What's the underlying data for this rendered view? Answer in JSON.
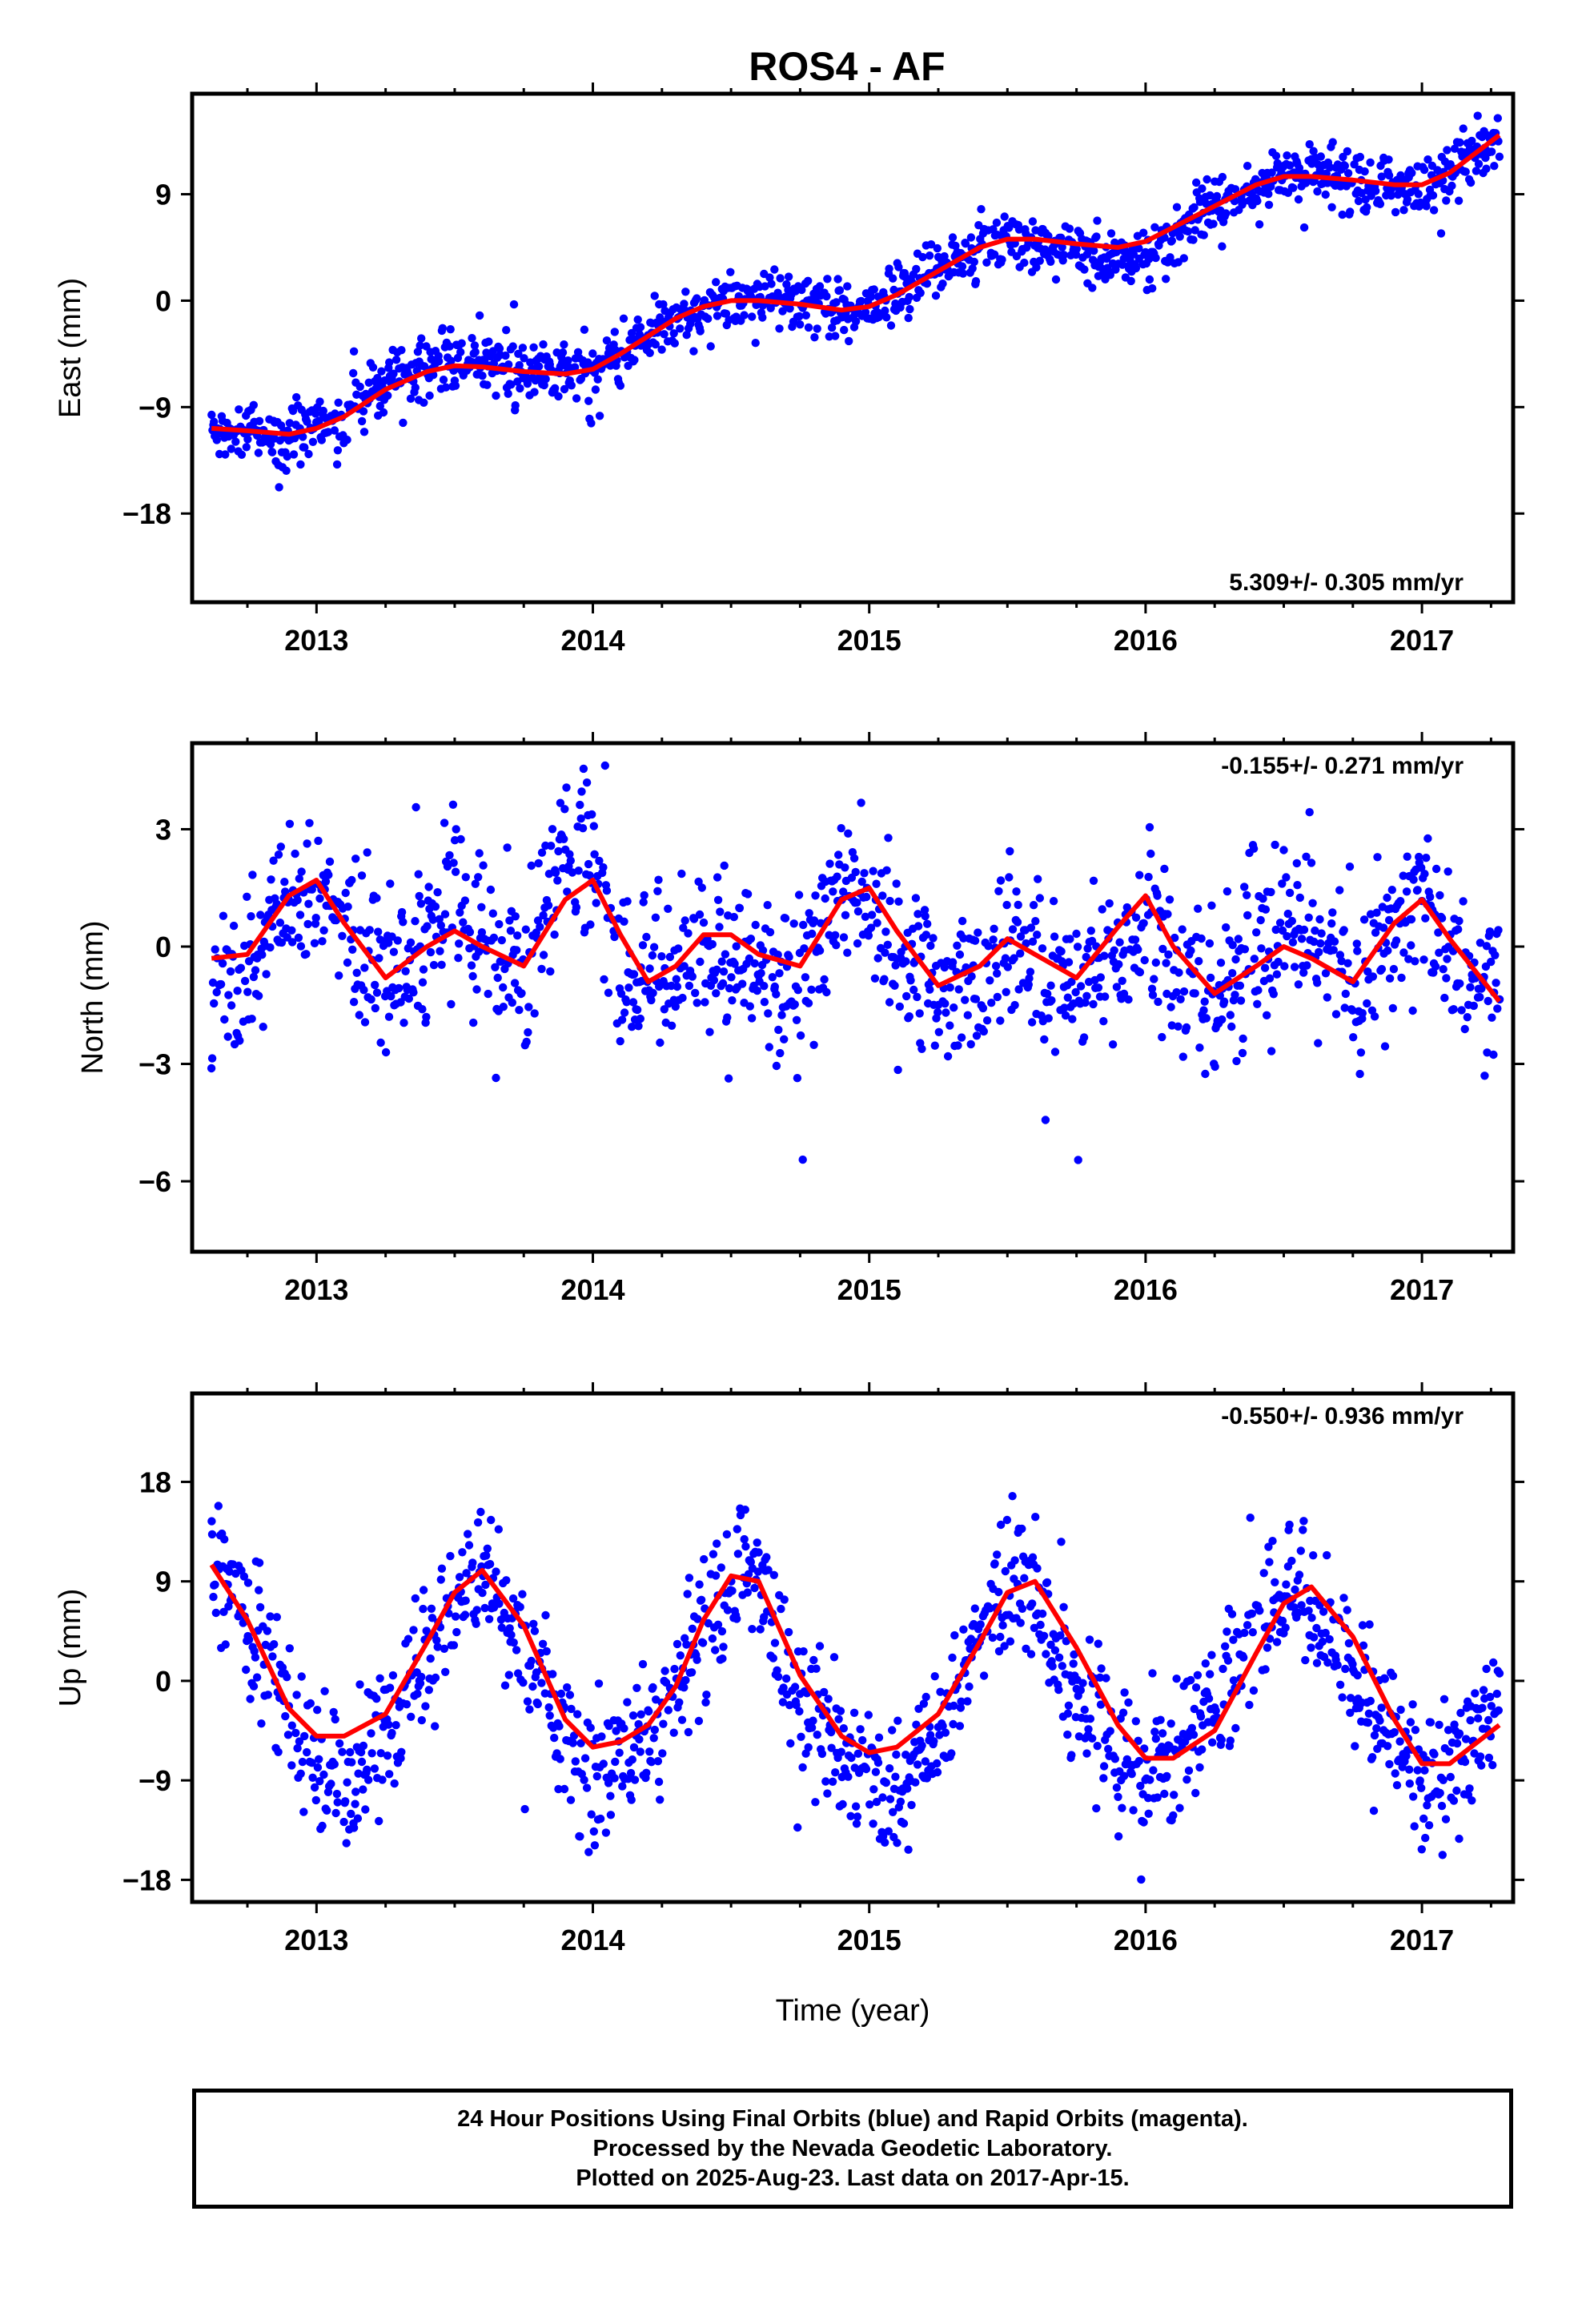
{
  "title": "ROS4 - AF",
  "colors": {
    "points": "#0000ff",
    "fit": "#ff0000",
    "axis": "#000000"
  },
  "chart_data": [
    {
      "type": "scatter",
      "component": "east",
      "ylabel": "East (mm)",
      "xlabel": "",
      "ylim": [
        -25.5,
        17.5
      ],
      "xlim": [
        2012.55,
        2017.33
      ],
      "x_ticks": [
        2013,
        2014,
        2015,
        2016,
        2017
      ],
      "y_ticks": [
        -18,
        -9,
        0,
        9
      ],
      "rate_label": "5.309+/- 0.305 mm/yr",
      "rate_position": "bottom-right",
      "grid": false,
      "series": [
        {
          "name": "Final Orbits",
          "color": "#0000ff",
          "x": [
            2012.62,
            2012.75,
            2012.9,
            2013.0,
            2013.1,
            2013.25,
            2013.4,
            2013.5,
            2013.6,
            2013.75,
            2013.9,
            2014.0,
            2014.1,
            2014.2,
            2014.3,
            2014.4,
            2014.5,
            2014.6,
            2014.75,
            2014.9,
            2015.0,
            2015.1,
            2015.25,
            2015.4,
            2015.5,
            2015.6,
            2015.75,
            2015.9,
            2016.0,
            2016.1,
            2016.25,
            2016.4,
            2016.5,
            2016.6,
            2016.75,
            2016.9,
            2017.0,
            2017.1,
            2017.28
          ],
          "y": [
            -10.8,
            -11.0,
            -11.5,
            -10.5,
            -9.5,
            -6.8,
            -5.5,
            -5.0,
            -5.2,
            -5.8,
            -6.0,
            -5.5,
            -4.5,
            -3.0,
            -1.5,
            -0.5,
            0.0,
            -0.2,
            -0.2,
            -0.8,
            -0.5,
            0.5,
            2.5,
            4.5,
            5.0,
            4.8,
            4.0,
            3.5,
            3.8,
            5.5,
            8.0,
            10.0,
            10.5,
            10.3,
            9.8,
            9.5,
            9.8,
            10.8,
            13.5
          ]
        },
        {
          "name": "Fit",
          "color": "#ff0000",
          "x": [
            2012.62,
            2012.75,
            2012.9,
            2013.0,
            2013.1,
            2013.25,
            2013.4,
            2013.5,
            2013.6,
            2013.75,
            2013.9,
            2014.0,
            2014.1,
            2014.2,
            2014.3,
            2014.4,
            2014.5,
            2014.6,
            2014.75,
            2014.9,
            2015.0,
            2015.1,
            2015.25,
            2015.4,
            2015.5,
            2015.6,
            2015.75,
            2015.9,
            2016.0,
            2016.1,
            2016.25,
            2016.4,
            2016.5,
            2016.6,
            2016.75,
            2016.9,
            2017.0,
            2017.1,
            2017.28
          ],
          "y": [
            -10.8,
            -11.0,
            -11.3,
            -10.8,
            -9.8,
            -7.5,
            -6.0,
            -5.5,
            -5.6,
            -6.0,
            -6.2,
            -5.8,
            -4.5,
            -3.0,
            -1.5,
            -0.5,
            0.0,
            0.0,
            -0.3,
            -0.8,
            -0.5,
            0.5,
            2.5,
            4.5,
            5.2,
            5.2,
            4.8,
            4.5,
            5.0,
            6.2,
            8.0,
            9.8,
            10.5,
            10.5,
            10.2,
            9.8,
            9.8,
            10.8,
            14.0
          ]
        }
      ]
    },
    {
      "type": "scatter",
      "component": "north",
      "ylabel": "North (mm)",
      "xlabel": "",
      "ylim": [
        -7.8,
        5.2
      ],
      "xlim": [
        2012.55,
        2017.33
      ],
      "x_ticks": [
        2013,
        2014,
        2015,
        2016,
        2017
      ],
      "y_ticks": [
        -6,
        -3,
        0,
        3
      ],
      "rate_label": "-0.155+/- 0.271 mm/yr",
      "rate_position": "top-right",
      "grid": false,
      "series": [
        {
          "name": "Final Orbits",
          "color": "#0000ff",
          "x": [
            2012.62,
            2012.75,
            2012.9,
            2013.0,
            2013.1,
            2013.25,
            2013.4,
            2013.5,
            2013.6,
            2013.75,
            2013.9,
            2014.0,
            2014.1,
            2014.2,
            2014.3,
            2014.4,
            2014.5,
            2014.6,
            2014.75,
            2014.9,
            2015.0,
            2015.1,
            2015.25,
            2015.4,
            2015.5,
            2015.6,
            2015.75,
            2015.9,
            2016.0,
            2016.1,
            2016.25,
            2016.4,
            2016.5,
            2016.6,
            2016.75,
            2016.9,
            2017.0,
            2017.1,
            2017.28
          ],
          "y": [
            -1.5,
            -0.5,
            1.5,
            1.5,
            0.5,
            -0.8,
            0.2,
            1.2,
            0.5,
            -0.8,
            2.5,
            2.5,
            -0.8,
            -0.8,
            -0.5,
            -0.3,
            -0.3,
            -0.5,
            -0.8,
            1.5,
            1.2,
            0.0,
            -1.0,
            -1.0,
            0.0,
            -0.5,
            -1.0,
            0.0,
            1.0,
            -1.0,
            -1.2,
            0.0,
            0.3,
            0.0,
            -0.8,
            0.5,
            1.5,
            -0.5,
            -1.5
          ]
        },
        {
          "name": "Fit",
          "color": "#ff0000",
          "x": [
            2012.62,
            2012.75,
            2012.9,
            2013.0,
            2013.1,
            2013.25,
            2013.4,
            2013.5,
            2013.6,
            2013.75,
            2013.9,
            2014.0,
            2014.1,
            2014.2,
            2014.3,
            2014.4,
            2014.5,
            2014.6,
            2014.75,
            2014.9,
            2015.0,
            2015.1,
            2015.25,
            2015.4,
            2015.5,
            2015.6,
            2015.75,
            2015.9,
            2016.0,
            2016.1,
            2016.25,
            2016.4,
            2016.5,
            2016.6,
            2016.75,
            2016.9,
            2017.0,
            2017.1,
            2017.28
          ],
          "y": [
            -0.3,
            -0.2,
            1.3,
            1.7,
            0.6,
            -0.8,
            0.0,
            0.4,
            0.0,
            -0.5,
            1.2,
            1.7,
            0.3,
            -0.9,
            -0.5,
            0.3,
            0.3,
            -0.2,
            -0.5,
            1.2,
            1.5,
            0.4,
            -1.0,
            -0.5,
            0.2,
            -0.2,
            -0.8,
            0.5,
            1.3,
            0.0,
            -1.2,
            -0.5,
            0.0,
            -0.3,
            -0.9,
            0.6,
            1.2,
            0.2,
            -1.4
          ]
        }
      ]
    },
    {
      "type": "scatter",
      "component": "up",
      "ylabel": "Up (mm)",
      "xlabel": "Time (year)",
      "ylim": [
        -20,
        26
      ],
      "xlim": [
        2012.55,
        2017.33
      ],
      "x_ticks": [
        2013,
        2014,
        2015,
        2016,
        2017
      ],
      "y_ticks": [
        -18,
        -9,
        0,
        9,
        18
      ],
      "rate_label": "-0.550+/- 0.936 mm/yr",
      "rate_position": "top-right",
      "grid": false,
      "series": [
        {
          "name": "Final Orbits",
          "color": "#0000ff",
          "x": [
            2012.62,
            2012.75,
            2012.9,
            2013.0,
            2013.1,
            2013.25,
            2013.4,
            2013.5,
            2013.6,
            2013.75,
            2013.9,
            2014.0,
            2014.1,
            2014.2,
            2014.3,
            2014.4,
            2014.5,
            2014.6,
            2014.75,
            2014.9,
            2015.0,
            2015.1,
            2015.25,
            2015.4,
            2015.5,
            2015.6,
            2015.75,
            2015.9,
            2016.0,
            2016.1,
            2016.25,
            2016.4,
            2016.5,
            2016.6,
            2016.75,
            2016.9,
            2017.0,
            2017.1,
            2017.28
          ],
          "y": [
            11.0,
            5.0,
            -2.0,
            -8.0,
            -9.0,
            -5.0,
            2.0,
            7.0,
            10.0,
            3.0,
            -5.0,
            -10.0,
            -7.0,
            -5.0,
            -2.0,
            4.0,
            9.0,
            10.0,
            -2.0,
            -7.0,
            -9.0,
            -10.0,
            -4.0,
            4.0,
            9.0,
            8.0,
            -2.0,
            -6.0,
            -8.0,
            -7.0,
            -2.0,
            5.0,
            8.0,
            7.0,
            0.0,
            -5.0,
            -8.0,
            -8.0,
            -2.0
          ]
        },
        {
          "name": "Fit",
          "color": "#ff0000",
          "x": [
            2012.62,
            2012.75,
            2012.9,
            2013.0,
            2013.1,
            2013.25,
            2013.4,
            2013.5,
            2013.6,
            2013.75,
            2013.9,
            2014.0,
            2014.1,
            2014.2,
            2014.3,
            2014.4,
            2014.5,
            2014.6,
            2014.75,
            2014.9,
            2015.0,
            2015.1,
            2015.25,
            2015.4,
            2015.5,
            2015.6,
            2015.75,
            2015.9,
            2016.0,
            2016.1,
            2016.25,
            2016.4,
            2016.5,
            2016.6,
            2016.75,
            2016.9,
            2017.0,
            2017.1,
            2017.28
          ],
          "y": [
            10.5,
            5.5,
            -2.5,
            -5.0,
            -5.0,
            -3.0,
            3.5,
            8.0,
            10.0,
            5.0,
            -3.5,
            -6.0,
            -5.5,
            -4.0,
            -0.5,
            5.5,
            9.5,
            9.0,
            0.5,
            -5.0,
            -6.5,
            -6.0,
            -3.0,
            3.5,
            8.0,
            9.0,
            3.0,
            -4.0,
            -7.0,
            -7.0,
            -4.5,
            2.5,
            7.0,
            8.5,
            4.0,
            -3.5,
            -7.5,
            -7.5,
            -4.0
          ]
        }
      ]
    }
  ],
  "footer": {
    "line1": "24 Hour Positions Using Final Orbits (blue) and Rapid Orbits (magenta).",
    "line2": "Processed by the Nevada Geodetic Laboratory.",
    "line3": "Plotted on 2025-Aug-23. Last data on 2017-Apr-15."
  }
}
